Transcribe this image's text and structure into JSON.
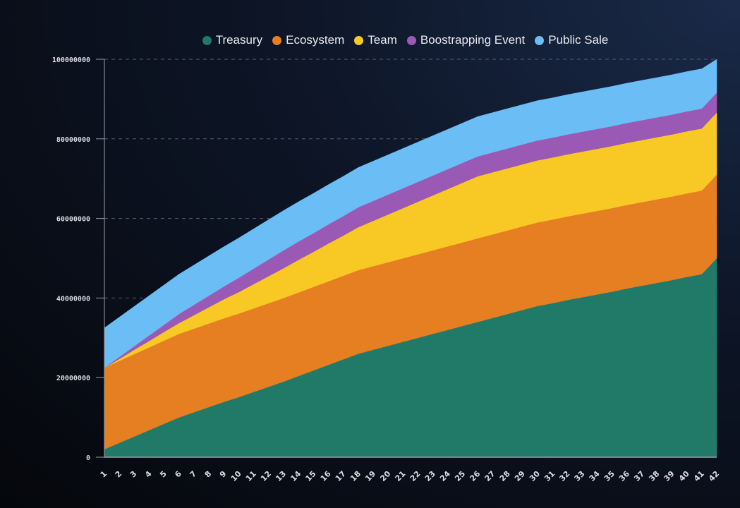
{
  "chart_data": {
    "type": "area",
    "stacked": true,
    "title": "",
    "xlabel": "",
    "ylabel": "",
    "ylim": [
      0,
      100000000
    ],
    "yticks": [
      "0",
      "20000000",
      "40000000",
      "60000000",
      "80000000",
      "100000000"
    ],
    "ytick_values": [
      0,
      20000000,
      40000000,
      60000000,
      80000000,
      100000000
    ],
    "grid": "horizontal dashed",
    "legend_position": "top",
    "unit_multiplier": 1000000,
    "x": [
      1,
      2,
      3,
      4,
      5,
      6,
      7,
      8,
      9,
      10,
      11,
      12,
      13,
      14,
      15,
      16,
      17,
      18,
      19,
      20,
      21,
      22,
      23,
      24,
      25,
      26,
      27,
      28,
      29,
      30,
      31,
      32,
      33,
      34,
      35,
      36,
      37,
      38,
      39,
      40,
      41,
      42
    ],
    "series": [
      {
        "name": "Treasury",
        "color": "#217a68",
        "values": [
          2,
          3.6,
          5.2,
          6.8,
          8.4,
          10,
          11.3,
          12.6,
          13.9,
          15.1,
          16.4,
          17.7,
          19,
          20.4,
          21.8,
          23.2,
          24.6,
          26,
          27,
          28,
          29,
          30,
          31,
          32,
          33,
          34,
          35,
          36,
          37,
          38,
          38.7,
          39.5,
          40.2,
          40.9,
          41.6,
          42.4,
          43.1,
          43.8,
          44.5,
          45.3,
          46,
          50
        ]
      },
      {
        "name": "Ecosystem",
        "color": "#e67e22",
        "values": [
          20.5,
          20.6,
          20.7,
          20.8,
          20.9,
          21,
          21,
          21,
          21,
          21,
          21,
          21,
          21,
          21,
          21,
          21,
          21,
          21,
          21,
          21,
          21,
          21,
          21,
          21,
          21,
          21,
          21,
          21,
          21,
          21,
          21,
          21,
          21,
          21,
          21,
          21,
          21,
          21,
          21,
          21,
          21,
          21
        ]
      },
      {
        "name": "Team",
        "color": "#f8c925",
        "values": [
          0,
          0.5,
          1.1,
          1.6,
          2.2,
          2.7,
          3.4,
          4.1,
          4.8,
          5.4,
          6.1,
          6.8,
          7.5,
          8.2,
          8.8,
          9.5,
          10.1,
          10.8,
          11.4,
          12,
          12.6,
          13.2,
          13.8,
          14.4,
          15,
          15.6,
          15.6,
          15.6,
          15.6,
          15.6,
          15.6,
          15.6,
          15.6,
          15.6,
          15.6,
          15.6,
          15.6,
          15.6,
          15.6,
          15.6,
          15.6,
          15.6
        ]
      },
      {
        "name": "Boostrapping Event",
        "color": "#9b59b6",
        "values": [
          0,
          0.5,
          0.9,
          1.4,
          1.8,
          2.3,
          2.6,
          2.9,
          3.2,
          3.6,
          3.9,
          4.2,
          4.5,
          4.6,
          4.7,
          4.8,
          4.9,
          5,
          5,
          5,
          5,
          5,
          5,
          5,
          5,
          5,
          5,
          5,
          5,
          5,
          5,
          5,
          5,
          5,
          5,
          5,
          5,
          5,
          5,
          5,
          5,
          5
        ]
      },
      {
        "name": "Public Sale",
        "color": "#6bbdf5",
        "values": [
          10,
          10,
          10,
          10,
          10,
          10,
          10,
          10,
          10,
          10,
          10,
          10,
          10,
          10,
          10,
          10,
          10,
          10,
          10,
          10,
          10,
          10,
          10,
          10,
          10,
          10,
          10,
          10,
          10,
          10,
          10,
          10,
          10,
          10,
          10,
          10,
          10,
          10,
          10,
          10,
          10,
          8.4
        ]
      }
    ]
  }
}
